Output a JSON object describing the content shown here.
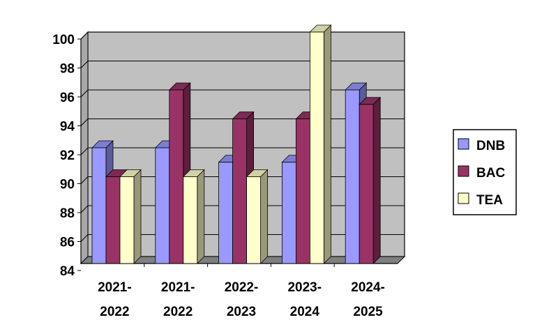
{
  "chart_data": {
    "type": "bar",
    "title": "",
    "xlabel": "",
    "ylabel": "",
    "categories": [
      [
        "2021-",
        "2022"
      ],
      [
        "2021-",
        "2022"
      ],
      [
        "2022-",
        "2023"
      ],
      [
        "2023-",
        "2024"
      ],
      [
        "2024-",
        "2025"
      ]
    ],
    "series": [
      {
        "name": "DNB",
        "color": "#9999ff",
        "values": [
          92,
          92,
          91,
          91,
          96
        ]
      },
      {
        "name": "BAC",
        "color": "#993366",
        "values": [
          90,
          96,
          94,
          94,
          95
        ]
      },
      {
        "name": "TEA",
        "color": "#ffffcc",
        "values": [
          90,
          90,
          90,
          100,
          null
        ]
      }
    ],
    "ylim": [
      84,
      100
    ],
    "yticks": [
      84,
      86,
      88,
      90,
      92,
      94,
      96,
      98,
      100
    ],
    "grid": true,
    "plot_background": "#c0c0c0",
    "legend_position": "right"
  }
}
